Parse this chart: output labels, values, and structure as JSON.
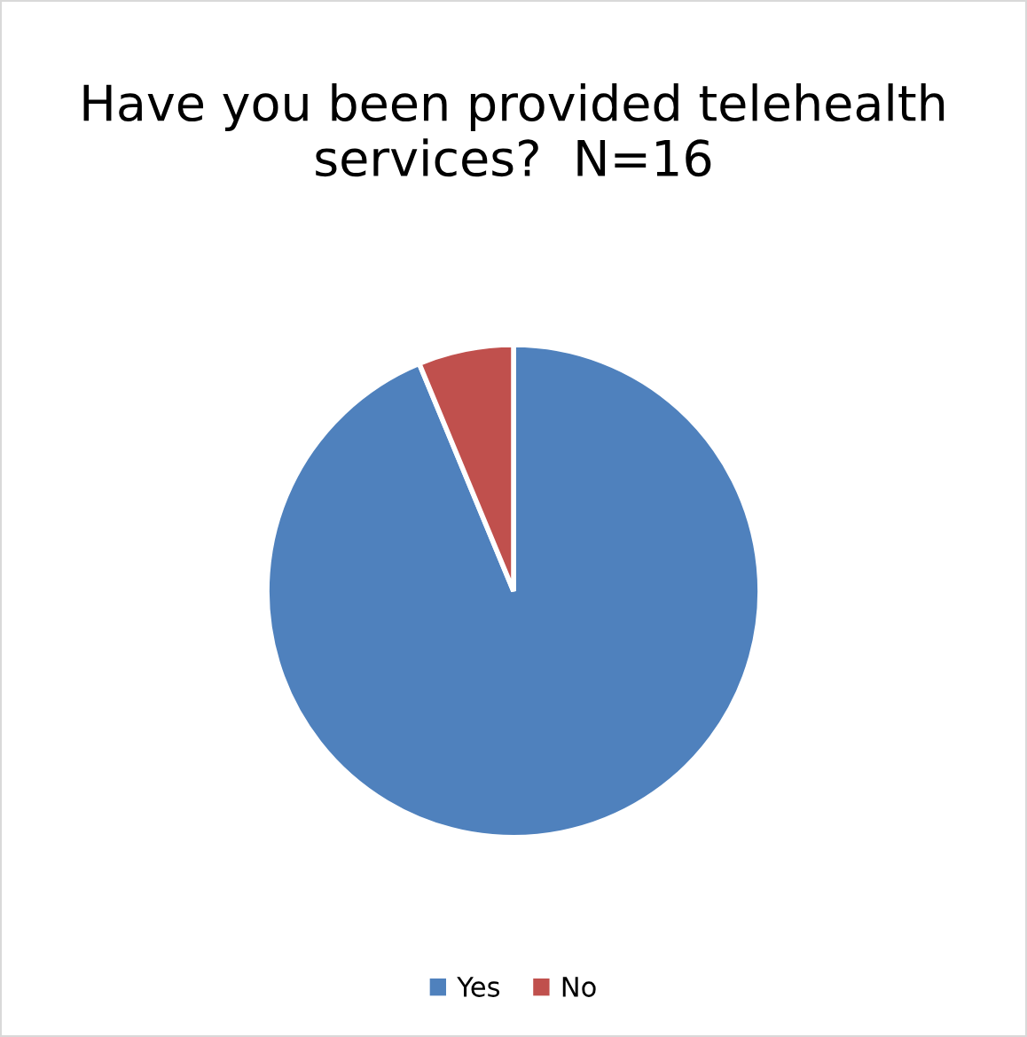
{
  "chart_data": {
    "type": "pie",
    "title": "Have you been provided telehealth services?  N=16",
    "categories": [
      "Yes",
      "No"
    ],
    "values": [
      93.75,
      6.25
    ],
    "colors": [
      "#4f81bd",
      "#c0504d"
    ],
    "legend": "bottom"
  }
}
